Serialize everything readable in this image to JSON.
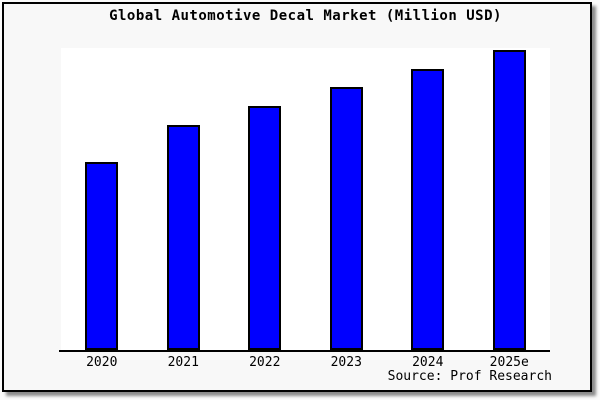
{
  "frame": {
    "background_color": "#f8f8f8",
    "border_color": "#000000",
    "plot_background_color": "#ffffff"
  },
  "chart_data": {
    "type": "bar",
    "title": "Global Automotive Decal Market (Million USD)",
    "categories": [
      "2020",
      "2021",
      "2022",
      "2023",
      "2024",
      "2025e"
    ],
    "values": [
      62.3,
      74.5,
      80.8,
      87.1,
      93.0,
      99.3
    ],
    "values_unit": "relative-height-percent",
    "y_axis_labels_visible": false,
    "xlabel": "",
    "ylabel": "",
    "ylim": [
      0,
      100
    ],
    "grid": false,
    "legend": false,
    "bar_color": "#0000ff",
    "bar_edge_color": "#000000",
    "axis_color": "#000000",
    "source": "Source: Prof Research"
  }
}
